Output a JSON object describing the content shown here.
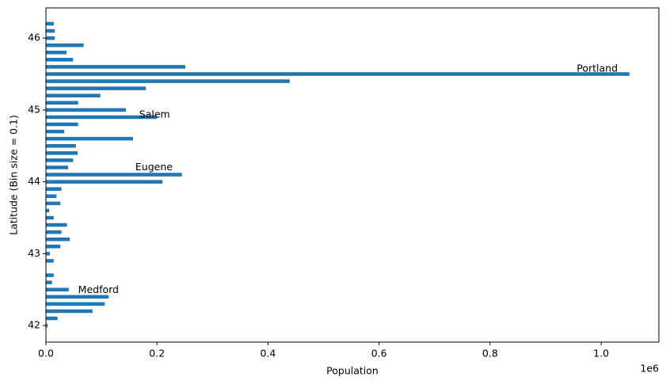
{
  "chart_data": {
    "type": "barh",
    "xlabel": "Population",
    "ylabel": "Latitude (Bin size = 0.1)",
    "x_offset_label": "1e6",
    "color": "#1f77b4",
    "y": [
      42.0,
      42.1,
      42.2,
      42.3,
      42.4,
      42.5,
      42.6,
      42.7,
      42.9,
      43.0,
      43.1,
      43.2,
      43.3,
      43.4,
      43.5,
      43.6,
      43.7,
      43.8,
      43.9,
      44.0,
      44.1,
      44.2,
      44.3,
      44.4,
      44.5,
      44.6,
      44.7,
      44.8,
      44.9,
      45.0,
      45.1,
      45.2,
      45.3,
      45.4,
      45.5,
      45.6,
      45.7,
      45.8,
      45.9,
      46.0,
      46.1,
      46.2
    ],
    "values": [
      3000,
      21000,
      84000,
      106000,
      113000,
      41000,
      11000,
      14000,
      14000,
      7000,
      26000,
      43000,
      28000,
      38000,
      14000,
      6000,
      26000,
      19000,
      28000,
      210000,
      245000,
      40000,
      49000,
      57000,
      54000,
      157000,
      33000,
      58000,
      200000,
      144000,
      58000,
      98000,
      180000,
      439000,
      1051000,
      251000,
      49000,
      37000,
      68000,
      16000,
      16000,
      14000
    ],
    "annotations": [
      {
        "text": "Portland",
        "x": 956000,
        "y": 45.57
      },
      {
        "text": "Salem",
        "x": 168000,
        "y": 44.93
      },
      {
        "text": "Eugene",
        "x": 161000,
        "y": 44.2
      },
      {
        "text": "Medford",
        "x": 58000,
        "y": 42.49
      }
    ],
    "xlim": [
      0,
      1104000
    ],
    "ylim": [
      41.77,
      46.42
    ],
    "xticks": [
      {
        "value": 0,
        "label": "0.0"
      },
      {
        "value": 200000,
        "label": "0.2"
      },
      {
        "value": 400000,
        "label": "0.4"
      },
      {
        "value": 600000,
        "label": "0.6"
      },
      {
        "value": 800000,
        "label": "0.8"
      },
      {
        "value": 1000000,
        "label": "1.0"
      }
    ],
    "yticks": [
      42,
      43,
      44,
      45,
      46
    ]
  }
}
